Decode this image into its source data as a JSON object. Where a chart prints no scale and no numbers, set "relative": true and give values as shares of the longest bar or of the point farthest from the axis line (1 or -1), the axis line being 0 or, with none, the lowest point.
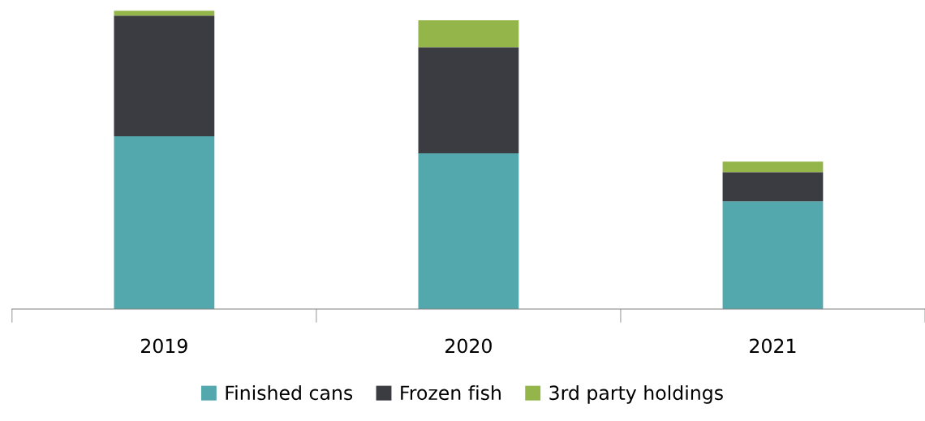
{
  "chart_data": {
    "type": "bar",
    "stacked": true,
    "relative": true,
    "categories": [
      "2019",
      "2020",
      "2021"
    ],
    "series": [
      {
        "name": "Finished cans",
        "color": "#53a8ae",
        "values": [
          0.579,
          0.522,
          0.361
        ]
      },
      {
        "name": "Frozen fish",
        "color": "#3b3c41",
        "values": [
          0.405,
          0.356,
          0.098
        ]
      },
      {
        "name": "3rd party holdings",
        "color": "#93b54a",
        "values": [
          0.016,
          0.09,
          0.035
        ]
      }
    ],
    "legend": "bottom",
    "grid": false
  }
}
